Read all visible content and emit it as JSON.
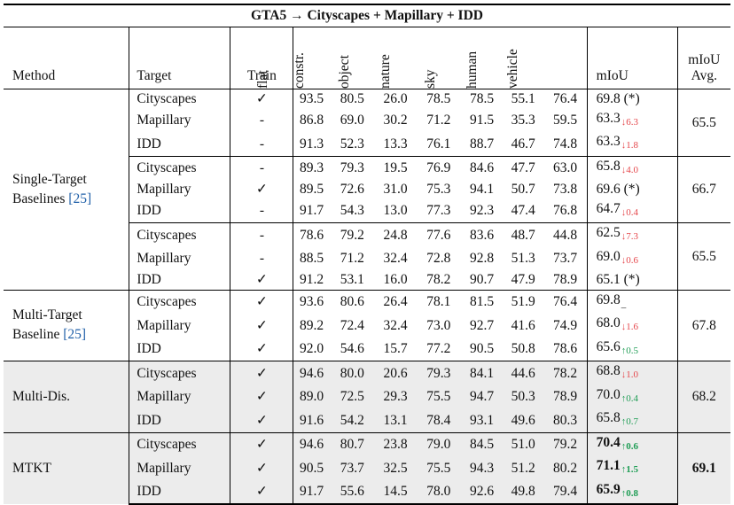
{
  "title": "GTA5 → Cityscapes + Mapillary + IDD",
  "headers": {
    "method": "Method",
    "target": "Target",
    "train": "Train",
    "classes": [
      "flat",
      "constr.",
      "object",
      "nature",
      "sky",
      "human",
      "vehicle"
    ],
    "miou": "mIoU",
    "miou_avg_line1": "mIoU",
    "miou_avg_line2": "Avg."
  },
  "groups": [
    {
      "method": "Single-Target Baselines",
      "method_line1": "Single-Target",
      "method_line2": "Baselines",
      "ref": "[25]",
      "subgroups": [
        {
          "avg": "65.5",
          "rows": [
            {
              "target": "Cityscapes",
              "train": "✓",
              "values": [
                "93.5",
                "80.5",
                "26.0",
                "78.5",
                "78.5",
                "55.1",
                "76.4"
              ],
              "miou": "69.8",
              "delta": "(*)",
              "dir": "star"
            },
            {
              "target": "Mapillary",
              "train": "-",
              "values": [
                "86.8",
                "69.0",
                "30.2",
                "71.2",
                "91.5",
                "35.3",
                "59.5"
              ],
              "miou": "63.3",
              "delta": "↓6.3",
              "dir": "down"
            },
            {
              "target": "IDD",
              "train": "-",
              "values": [
                "91.3",
                "52.3",
                "13.3",
                "76.1",
                "88.7",
                "46.7",
                "74.8"
              ],
              "miou": "63.3",
              "delta": "↓1.8",
              "dir": "down"
            }
          ]
        },
        {
          "avg": "66.7",
          "rows": [
            {
              "target": "Cityscapes",
              "train": "-",
              "values": [
                "89.3",
                "79.3",
                "19.5",
                "76.9",
                "84.6",
                "47.7",
                "63.0"
              ],
              "miou": "65.8",
              "delta": "↓4.0",
              "dir": "down"
            },
            {
              "target": "Mapillary",
              "train": "✓",
              "values": [
                "89.5",
                "72.6",
                "31.0",
                "75.3",
                "94.1",
                "50.7",
                "73.8"
              ],
              "miou": "69.6",
              "delta": "(*)",
              "dir": "star"
            },
            {
              "target": "IDD",
              "train": "-",
              "values": [
                "91.7",
                "54.3",
                "13.0",
                "77.3",
                "92.3",
                "47.4",
                "76.8"
              ],
              "miou": "64.7",
              "delta": "↓0.4",
              "dir": "down"
            }
          ]
        },
        {
          "avg": "65.5",
          "rows": [
            {
              "target": "Cityscapes",
              "train": "-",
              "values": [
                "78.6",
                "79.2",
                "24.8",
                "77.6",
                "83.6",
                "48.7",
                "44.8"
              ],
              "miou": "62.5",
              "delta": "↓7.3",
              "dir": "down"
            },
            {
              "target": "Mapillary",
              "train": "-",
              "values": [
                "88.5",
                "71.2",
                "32.4",
                "72.8",
                "92.8",
                "51.3",
                "73.7"
              ],
              "miou": "69.0",
              "delta": "↓0.6",
              "dir": "down"
            },
            {
              "target": "IDD",
              "train": "✓",
              "values": [
                "91.2",
                "53.1",
                "16.0",
                "78.2",
                "90.7",
                "47.9",
                "78.9"
              ],
              "miou": "65.1",
              "delta": "(*)",
              "dir": "star"
            }
          ]
        }
      ]
    },
    {
      "method": "Multi-Target Baseline",
      "method_line1": "Multi-Target",
      "method_line2": "Baseline",
      "ref": "[25]",
      "subgroups": [
        {
          "avg": "67.8",
          "rows": [
            {
              "target": "Cityscapes",
              "train": "✓",
              "values": [
                "93.6",
                "80.6",
                "26.4",
                "78.1",
                "81.5",
                "51.9",
                "76.4"
              ],
              "miou": "69.8",
              "delta": "_",
              "dir": "neutral"
            },
            {
              "target": "Mapillary",
              "train": "✓",
              "values": [
                "89.2",
                "72.4",
                "32.4",
                "73.0",
                "92.7",
                "41.6",
                "74.9"
              ],
              "miou": "68.0",
              "delta": "↓1.6",
              "dir": "down"
            },
            {
              "target": "IDD",
              "train": "✓",
              "values": [
                "92.0",
                "54.6",
                "15.7",
                "77.2",
                "90.5",
                "50.8",
                "78.6"
              ],
              "miou": "65.6",
              "delta": "↑0.5",
              "dir": "up"
            }
          ]
        }
      ]
    },
    {
      "method": "Multi-Dis.",
      "method_line1": "Multi-Dis.",
      "shaded": true,
      "subgroups": [
        {
          "avg": "68.2",
          "rows": [
            {
              "target": "Cityscapes",
              "train": "✓",
              "values": [
                "94.6",
                "80.0",
                "20.6",
                "79.3",
                "84.1",
                "44.6",
                "78.2"
              ],
              "miou": "68.8",
              "delta": "↓1.0",
              "dir": "down"
            },
            {
              "target": "Mapillary",
              "train": "✓",
              "values": [
                "89.0",
                "72.5",
                "29.3",
                "75.5",
                "94.7",
                "50.3",
                "78.9"
              ],
              "miou": "70.0",
              "delta": "↑0.4",
              "dir": "up"
            },
            {
              "target": "IDD",
              "train": "✓",
              "values": [
                "91.6",
                "54.2",
                "13.1",
                "78.4",
                "93.1",
                "49.6",
                "80.3"
              ],
              "miou": "65.8",
              "delta": "↑0.7",
              "dir": "up"
            }
          ]
        }
      ]
    },
    {
      "method": "MTKT",
      "method_line1": "MTKT",
      "shaded": true,
      "bold": true,
      "subgroups": [
        {
          "avg": "69.1",
          "rows": [
            {
              "target": "Cityscapes",
              "train": "✓",
              "values": [
                "94.6",
                "80.7",
                "23.8",
                "79.0",
                "84.5",
                "51.0",
                "79.2"
              ],
              "miou": "70.4",
              "delta": "↑0.6",
              "dir": "up"
            },
            {
              "target": "Mapillary",
              "train": "✓",
              "values": [
                "90.5",
                "73.7",
                "32.5",
                "75.5",
                "94.3",
                "51.2",
                "80.2"
              ],
              "miou": "71.1",
              "delta": "↑1.5",
              "dir": "up"
            },
            {
              "target": "IDD",
              "train": "✓",
              "values": [
                "91.7",
                "55.6",
                "14.5",
                "78.0",
                "92.6",
                "49.8",
                "79.4"
              ],
              "miou": "65.9",
              "delta": "↑0.8",
              "dir": "up"
            }
          ]
        }
      ]
    }
  ]
}
